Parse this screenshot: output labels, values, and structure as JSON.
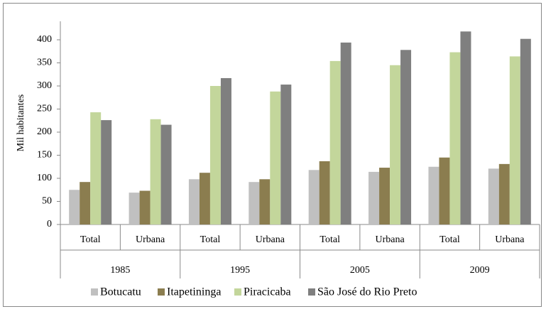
{
  "chart_data": {
    "type": "bar",
    "y_label": "Mil habitantes",
    "categories": [
      "Total",
      "Urbana",
      "Total",
      "Urbana",
      "Total",
      "Urbana",
      "Total",
      "Urbana"
    ],
    "groups": [
      "1985",
      "1995",
      "2005",
      "2009"
    ],
    "series": [
      {
        "name": "Botucatu",
        "color": "#c0c0c0",
        "values": [
          75,
          69,
          98,
          92,
          118,
          114,
          125,
          121
        ]
      },
      {
        "name": "Itapetininga",
        "color": "#8b7d4f",
        "values": [
          92,
          73,
          112,
          98,
          137,
          123,
          145,
          131
        ]
      },
      {
        "name": "Piracicaba",
        "color": "#c3d69b",
        "values": [
          243,
          228,
          300,
          288,
          354,
          345,
          373,
          364
        ]
      },
      {
        "name": "São José do Rio Preto",
        "color": "#7f7f7f",
        "values": [
          226,
          216,
          317,
          303,
          394,
          378,
          418,
          402
        ]
      }
    ],
    "ylim": [
      0,
      440
    ],
    "yticks": [
      0,
      50,
      100,
      150,
      200,
      250,
      300,
      350,
      400
    ],
    "grid": false
  }
}
